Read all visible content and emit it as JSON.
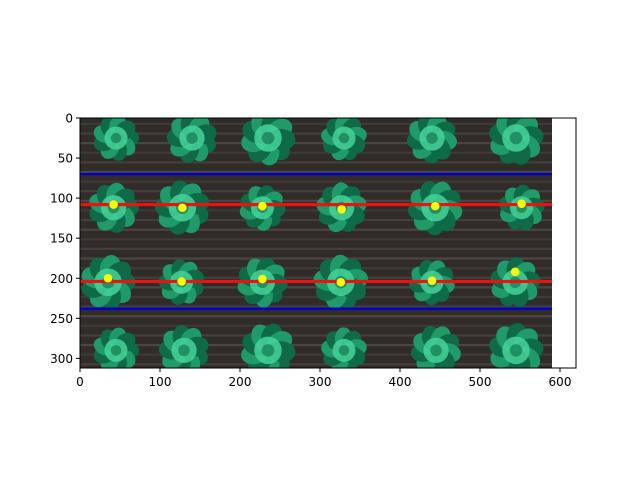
{
  "chart_data": {
    "type": "scatter",
    "title": "",
    "xlabel": "",
    "ylabel": "",
    "xlim": [
      0,
      620
    ],
    "ylim": [
      312,
      0
    ],
    "image_extent": {
      "x": [
        0,
        590
      ],
      "y": [
        0,
        312
      ]
    },
    "x_ticks": [
      0,
      100,
      200,
      300,
      400,
      500,
      600
    ],
    "y_ticks": [
      0,
      50,
      100,
      150,
      200,
      250,
      300
    ],
    "grid": false,
    "legend": "none",
    "background_image": "aerial photo of lettuce plants on soil, arranged in rows",
    "horizontal_lines": [
      {
        "name": "",
        "y": 70,
        "x_range": [
          0,
          590
        ],
        "color": "#0000cc"
      },
      {
        "name": "",
        "y": 108,
        "x_range": [
          0,
          590
        ],
        "color": "#ee1111"
      },
      {
        "name": "",
        "y": 204,
        "x_range": [
          0,
          590
        ],
        "color": "#ee1111"
      },
      {
        "name": "",
        "y": 238,
        "x_range": [
          0,
          590
        ],
        "color": "#0000cc"
      }
    ],
    "points": {
      "color": "#ffff00",
      "x": [
        42,
        128,
        228,
        327,
        444,
        552,
        35,
        127,
        228,
        326,
        440,
        544
      ],
      "y": [
        108,
        112,
        110,
        114,
        110,
        107,
        200,
        204,
        201,
        205,
        203,
        192
      ]
    }
  },
  "colors": {
    "soil_dark": "#2f2c2a",
    "soil_light": "#6a625c",
    "plant_dark": "#0f6a48",
    "plant_mid": "#1f9a68",
    "plant_light": "#45d39a"
  }
}
